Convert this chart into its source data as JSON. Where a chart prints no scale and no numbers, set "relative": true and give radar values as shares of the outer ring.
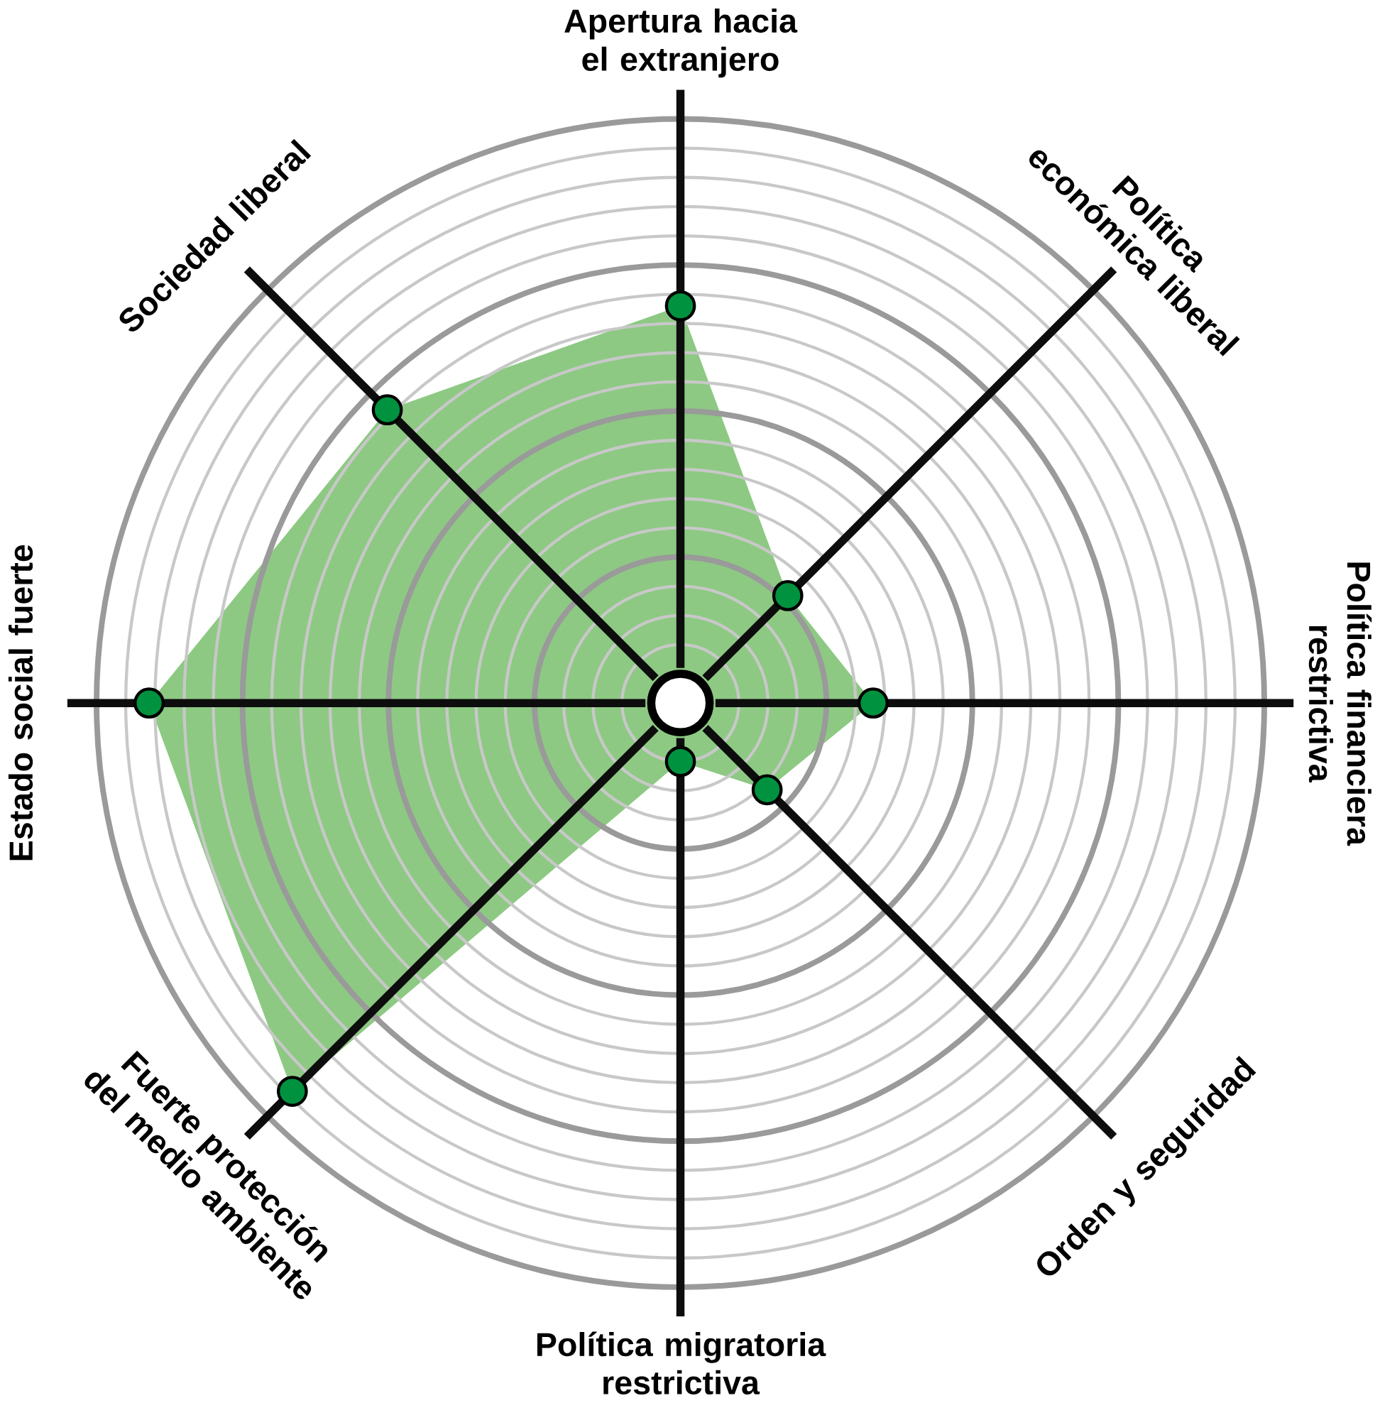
{
  "chart_data": {
    "type": "radar",
    "relative": true,
    "marker": "circle",
    "categories": [
      "Apertura hacia el extranjero",
      "Política económica liberal",
      "Política financiera restrictiva",
      "Orden y seguridad",
      "Política migratoria restrictiva",
      "Fuerte protección del medio ambiente",
      "Estado social fuerte",
      "Sociedad liberal"
    ],
    "series": [
      {
        "color": "#8dc983",
        "values": [
          0.68,
          0.26,
          0.33,
          0.21,
          0.1,
          0.94,
          0.91,
          0.71
        ]
      }
    ]
  }
}
